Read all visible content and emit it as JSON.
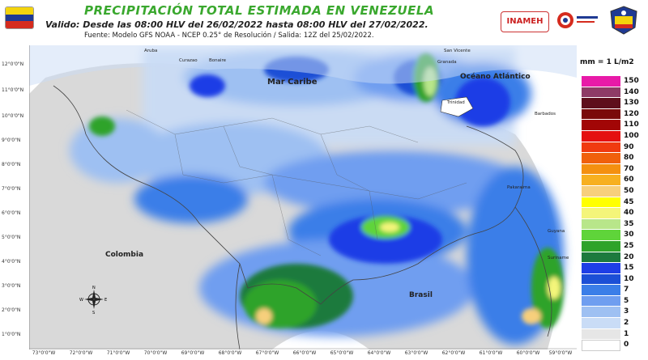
{
  "header": {
    "title": "PRECIPITACIÓN TOTAL ESTIMADA EN VENEZUELA",
    "subtitle": "Valido: Desde las 08:00 HLV del 26/02/2022 hasta 08:00 HLV del 27/02/2022.",
    "source": "Fuente: Modelo GFS NOAA - NCEP 0.25° de Resolución / Salida: 12Z del 25/02/2022.",
    "logo_inameh": "INAMEH"
  },
  "flag_colors": [
    "#f4d40c",
    "#1f3a93",
    "#d52b1e"
  ],
  "map": {
    "labels": {
      "mar_caribe": "Mar Caribe",
      "oceano_atlantico": "Océano Atlántico",
      "colombia": "Colombia",
      "brasil": "Brasil",
      "guyana": "Guyana",
      "suriname": "Suriname",
      "trinidad": "Trinidad",
      "curazao": "Curazao",
      "bonaire": "Bonaire",
      "aruba": "Aruba",
      "granada": "Granada",
      "san_vicente": "San Vicente",
      "barbados": "Barbados",
      "pakaraima": "Pakaraima"
    },
    "lat_labels": [
      "12°0'0\"N",
      "11°0'0\"N",
      "10°0'0\"N",
      "9°0'0\"N",
      "8°0'0\"N",
      "7°0'0\"N",
      "6°0'0\"N",
      "5°0'0\"N",
      "4°0'0\"N",
      "3°0'0\"N",
      "2°0'0\"N",
      "1°0'0\"N"
    ],
    "lon_labels": [
      "73°0'0\"W",
      "72°0'0\"W",
      "71°0'0\"W",
      "70°0'0\"W",
      "69°0'0\"W",
      "68°0'0\"W",
      "67°0'0\"W",
      "66°0'0\"W",
      "65°0'0\"W",
      "64°0'0\"W",
      "63°0'0\"W",
      "62°0'0\"W",
      "61°0'0\"W",
      "60°0'0\"W",
      "59°0'0\"W"
    ],
    "compass": {
      "n": "N",
      "s": "S",
      "e": "E",
      "w": "W"
    }
  },
  "legend": {
    "title": "mm = 1 L/m2",
    "items": [
      {
        "label": "150",
        "color": "#e81aa8"
      },
      {
        "label": "140",
        "color": "#8e3b66"
      },
      {
        "label": "130",
        "color": "#5e0f1c"
      },
      {
        "label": "120",
        "color": "#7a0a0a"
      },
      {
        "label": "110",
        "color": "#a20606"
      },
      {
        "label": "100",
        "color": "#e41010"
      },
      {
        "label": "90",
        "color": "#f03a10"
      },
      {
        "label": "80",
        "color": "#f0600c"
      },
      {
        "label": "70",
        "color": "#f49010"
      },
      {
        "label": "60",
        "color": "#f7b020"
      },
      {
        "label": "50",
        "color": "#f7cf7c"
      },
      {
        "label": "45",
        "color": "#ffff00"
      },
      {
        "label": "40",
        "color": "#f4f57a"
      },
      {
        "label": "35",
        "color": "#b8e68a"
      },
      {
        "label": "30",
        "color": "#5fd43a"
      },
      {
        "label": "25",
        "color": "#2ea32a"
      },
      {
        "label": "20",
        "color": "#1d7a3e"
      },
      {
        "label": "15",
        "color": "#1e3ee6"
      },
      {
        "label": "10",
        "color": "#1c4fd6"
      },
      {
        "label": "7",
        "color": "#3b7ee8"
      },
      {
        "label": "5",
        "color": "#6f9ef0"
      },
      {
        "label": "3",
        "color": "#9ec0f2"
      },
      {
        "label": "2",
        "color": "#c9dcf6"
      },
      {
        "label": "1",
        "color": "#e6e6e6"
      },
      {
        "label": "0",
        "color": "#ffffff"
      }
    ]
  }
}
